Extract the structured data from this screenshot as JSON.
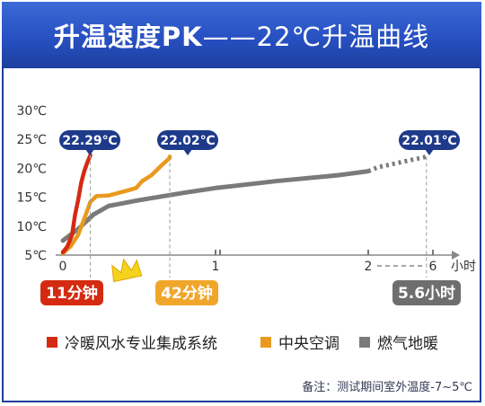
{
  "header": {
    "title_main": "升温速度PK",
    "title_sub": "——22℃升温曲线"
  },
  "footnote": "备注：测试期间室外温度-7~5℃",
  "colors": {
    "header_blue": "#2750c2",
    "badge_navy": "#1e3a8a",
    "floor_heating": "#d42a12",
    "central_ac": "#e89a1f",
    "gas_heating": "#7a7a7a",
    "time_red": "#d42a12",
    "time_orange": "#f0a62a",
    "time_gray": "#6e6e6e",
    "crown": "#f5d31c"
  },
  "chart_data": {
    "type": "line",
    "yticks": [
      "5℃",
      "10℃",
      "15℃",
      "20℃",
      "25℃",
      "30℃"
    ],
    "ylim": [
      5,
      30
    ],
    "xticks": [
      "0",
      "1",
      "2",
      "6"
    ],
    "x_unit": "小时",
    "x_ticks_values": [
      0,
      1,
      2,
      6
    ],
    "grid": false,
    "legend_position": "bottom",
    "series": [
      {
        "name": "冷暖风水专业集成系统",
        "color_key": "floor_heating",
        "end_label": "22.29℃",
        "time_label": "11分钟",
        "points": [
          [
            0,
            5.5
          ],
          [
            0.03,
            6.5
          ],
          [
            0.06,
            8.5
          ],
          [
            0.08,
            12
          ],
          [
            0.1,
            14.5
          ],
          [
            0.12,
            17.5
          ],
          [
            0.14,
            19.5
          ],
          [
            0.16,
            21
          ],
          [
            0.18,
            22.29
          ]
        ]
      },
      {
        "name": "中央空调",
        "color_key": "central_ac",
        "end_label": "22.02℃",
        "time_label": "42分钟",
        "points": [
          [
            0,
            5.3
          ],
          [
            0.05,
            6.5
          ],
          [
            0.1,
            8.5
          ],
          [
            0.15,
            12
          ],
          [
            0.18,
            14.2
          ],
          [
            0.22,
            15.2
          ],
          [
            0.3,
            15.3
          ],
          [
            0.4,
            16
          ],
          [
            0.48,
            16.6
          ],
          [
            0.52,
            17.8
          ],
          [
            0.58,
            18.8
          ],
          [
            0.65,
            20.6
          ],
          [
            0.7,
            21.8
          ],
          [
            0.7,
            22.02
          ]
        ]
      },
      {
        "name": "燃气地暖",
        "color_key": "gas_heating",
        "end_label": "22.01℃",
        "time_label": "5.6小时",
        "points": [
          [
            0,
            7.5
          ],
          [
            0.1,
            9.5
          ],
          [
            0.2,
            12
          ],
          [
            0.3,
            13.5
          ],
          [
            0.5,
            14.5
          ],
          [
            0.8,
            15.8
          ],
          [
            1.0,
            16.6
          ],
          [
            1.4,
            17.8
          ],
          [
            1.8,
            18.8
          ],
          [
            2.0,
            19.5
          ],
          [
            2.6,
            20.2
          ],
          [
            5.6,
            22.01
          ]
        ]
      }
    ]
  }
}
